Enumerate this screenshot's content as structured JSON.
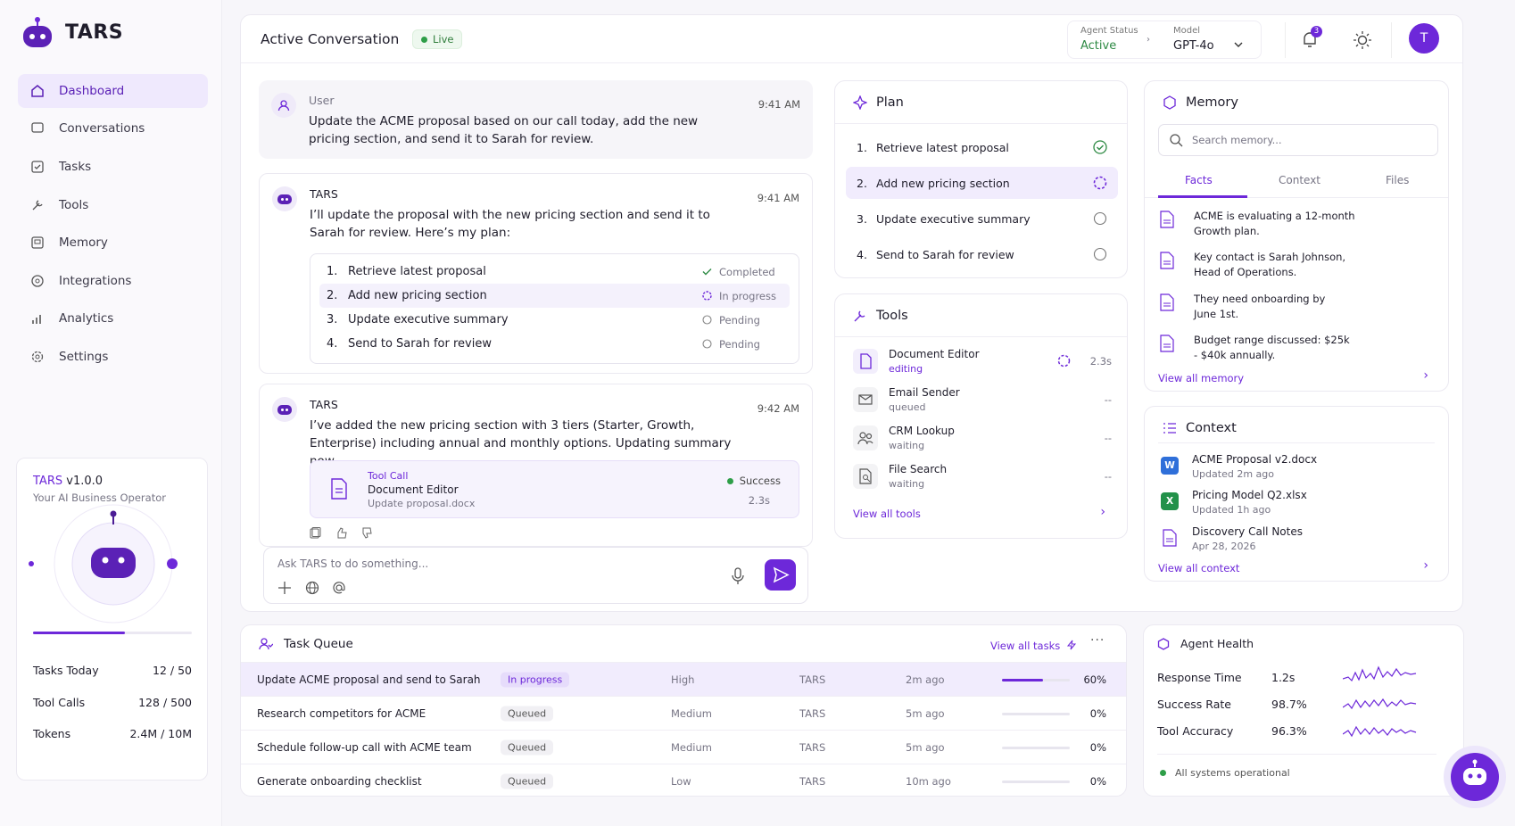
{
  "sidebar": {
    "brand": "TARS",
    "nav": [
      "Dashboard",
      "Conversations",
      "Tasks",
      "Tools",
      "Memory",
      "Integrations",
      "Analytics",
      "Settings"
    ],
    "card": {
      "name": "TARS",
      "version": "v1.0.0",
      "subtitle": "Your AI Business Operator",
      "stats": [
        {
          "label": "Tasks Today",
          "value": "12 / 50"
        },
        {
          "label": "Tool Calls",
          "value": "128 / 500"
        },
        {
          "label": "Tokens",
          "value": "2.4M / 10M"
        }
      ]
    }
  },
  "header": {
    "title": "Active Conversation",
    "badge": "Live",
    "agent_status_label": "Agent Status",
    "agent_status": "Active",
    "model_label": "Model",
    "model": "GPT-4o",
    "notifications": "3",
    "avatar": "T"
  },
  "messages": [
    {
      "role": "User",
      "time": "9:41 AM",
      "text": "Update the ACME proposal based on our call today, add the new pricing section, and send it to Sarah for review."
    },
    {
      "role": "TARS",
      "time": "9:41 AM",
      "text": "I’ll update the proposal with the new pricing section and send it to Sarah for review. Here’s my plan:",
      "plan": [
        {
          "num": "1.",
          "step": "Retrieve latest proposal",
          "status": "Completed"
        },
        {
          "num": "2.",
          "step": "Add new pricing section",
          "status": "In progress"
        },
        {
          "num": "3.",
          "step": "Update executive summary",
          "status": "Pending"
        },
        {
          "num": "4.",
          "step": "Send to Sarah for review",
          "status": "Pending"
        }
      ]
    },
    {
      "role": "TARS",
      "time": "9:42 AM",
      "text": "I’ve added the new pricing section with 3 tiers (Starter, Growth, Enterprise) including annual and monthly options. Updating summary now...",
      "tool_call": {
        "label": "Tool Call",
        "name": "Document Editor",
        "detail": "Update proposal.docx",
        "status": "Success",
        "duration": "2.3s"
      }
    }
  ],
  "composer": {
    "placeholder": "Ask TARS to do something..."
  },
  "plan": {
    "title": "Plan",
    "steps": [
      {
        "num": "1.",
        "step": "Retrieve latest proposal"
      },
      {
        "num": "2.",
        "step": "Add new pricing section"
      },
      {
        "num": "3.",
        "step": "Update executive summary"
      },
      {
        "num": "4.",
        "step": "Send to Sarah for review"
      }
    ]
  },
  "tools": {
    "title": "Tools",
    "items": [
      {
        "name": "Document Editor",
        "status": "editing",
        "duration": "2.3s"
      },
      {
        "name": "Email Sender",
        "status": "queued",
        "duration": "--"
      },
      {
        "name": "CRM Lookup",
        "status": "waiting",
        "duration": "--"
      },
      {
        "name": "File Search",
        "status": "waiting",
        "duration": "--"
      }
    ],
    "link": "View all tools"
  },
  "memory": {
    "title": "Memory",
    "search": "Search memory...",
    "tabs": [
      "Facts",
      "Context",
      "Files"
    ],
    "facts": [
      "ACME is evaluating a 12-month Growth plan.",
      "Key contact is Sarah Johnson, Head of Operations.",
      "They need onboarding by June 1st.",
      "Budget range discussed: $25k - $40k annually."
    ],
    "link": "View all memory"
  },
  "context": {
    "title": "Context",
    "files": [
      {
        "icon": "W",
        "name": "ACME Proposal v2.docx",
        "updated": "Updated 2m ago"
      },
      {
        "icon": "X",
        "name": "Pricing Model Q2.xlsx",
        "updated": "Updated 1h ago"
      },
      {
        "name": "Discovery Call Notes",
        "updated": "Apr 28, 2026"
      }
    ],
    "link": "View all context"
  },
  "task_queue": {
    "title": "Task Queue",
    "link": "View all tasks",
    "rows": [
      {
        "task": "Update ACME proposal and send to Sarah",
        "status": "In progress",
        "priority": "High",
        "agent": "TARS",
        "time": "2m ago",
        "progress": 60,
        "progress_label": "60%"
      },
      {
        "task": "Research competitors for ACME",
        "status": "Queued",
        "priority": "Medium",
        "agent": "TARS",
        "time": "5m ago",
        "progress": 0,
        "progress_label": "0%"
      },
      {
        "task": "Schedule follow-up call with ACME team",
        "status": "Queued",
        "priority": "Medium",
        "agent": "TARS",
        "time": "5m ago",
        "progress": 0,
        "progress_label": "0%"
      },
      {
        "task": "Generate onboarding checklist",
        "status": "Queued",
        "priority": "Low",
        "agent": "TARS",
        "time": "10m ago",
        "progress": 0,
        "progress_label": "0%"
      }
    ]
  },
  "agent_health": {
    "title": "Agent Health",
    "metrics": [
      {
        "label": "Response Time",
        "value": "1.2s"
      },
      {
        "label": "Success Rate",
        "value": "98.7%"
      },
      {
        "label": "Tool Accuracy",
        "value": "96.3%"
      }
    ],
    "footer": "All systems operational"
  }
}
